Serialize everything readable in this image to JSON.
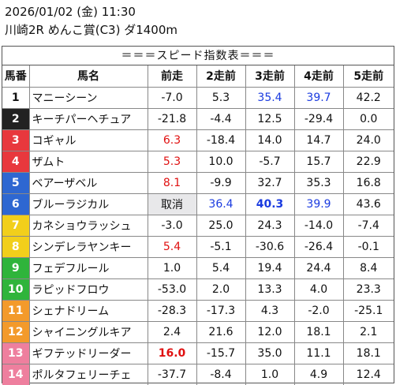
{
  "header": {
    "line1": "2026/01/02 (金) 11:30",
    "line2": "川崎2R めんこ賞(C3) ダ1400m"
  },
  "table": {
    "title": "＝＝＝スピード指数表＝＝＝",
    "columns": [
      "馬番",
      "馬名",
      "前走",
      "2走前",
      "3走前",
      "4走前",
      "5走前"
    ],
    "rows": [
      {
        "no": "1",
        "name": "マニーシーン",
        "vals": [
          "-7.0",
          "5.3",
          "35.4",
          "39.7",
          "42.2"
        ],
        "styles": [
          "",
          "",
          "blue",
          "blue",
          ""
        ]
      },
      {
        "no": "2",
        "name": "キーチパーヘチュア",
        "vals": [
          "-21.8",
          "-4.4",
          "12.5",
          "-29.4",
          "0.0"
        ],
        "styles": [
          "",
          "",
          "",
          "",
          ""
        ]
      },
      {
        "no": "3",
        "name": "コギャル",
        "vals": [
          "6.3",
          "-18.4",
          "14.0",
          "14.7",
          "24.0"
        ],
        "styles": [
          "red",
          "",
          "",
          "",
          ""
        ]
      },
      {
        "no": "4",
        "name": "ザムト",
        "vals": [
          "5.3",
          "10.0",
          "-5.7",
          "15.7",
          "22.9"
        ],
        "styles": [
          "red",
          "",
          "",
          "",
          ""
        ]
      },
      {
        "no": "5",
        "name": "ベアーザベル",
        "vals": [
          "8.1",
          "-9.9",
          "32.7",
          "35.3",
          "16.8"
        ],
        "styles": [
          "red",
          "",
          "",
          "",
          ""
        ]
      },
      {
        "no": "6",
        "name": "ブルーラジカル",
        "vals": [
          "取消",
          "36.4",
          "40.3",
          "39.9",
          "43.6"
        ],
        "styles": [
          "cancel",
          "blue",
          "blue bold",
          "blue",
          ""
        ]
      },
      {
        "no": "7",
        "name": "カネショウラッシュ",
        "vals": [
          "-3.0",
          "25.0",
          "24.3",
          "-14.0",
          "-7.4"
        ],
        "styles": [
          "",
          "",
          "",
          "",
          ""
        ]
      },
      {
        "no": "8",
        "name": "シンデレラヤンキー",
        "vals": [
          "5.4",
          "-5.1",
          "-30.6",
          "-26.4",
          "-0.1"
        ],
        "styles": [
          "red",
          "",
          "",
          "",
          ""
        ]
      },
      {
        "no": "9",
        "name": "フェデフルール",
        "vals": [
          "1.0",
          "5.4",
          "19.4",
          "24.4",
          "8.4"
        ],
        "styles": [
          "",
          "",
          "",
          "",
          ""
        ]
      },
      {
        "no": "10",
        "name": "ラピッドフロウ",
        "vals": [
          "-53.0",
          "2.0",
          "13.3",
          "4.0",
          "23.3"
        ],
        "styles": [
          "",
          "",
          "",
          "",
          ""
        ]
      },
      {
        "no": "11",
        "name": "シェナドリーム",
        "vals": [
          "-28.3",
          "-17.3",
          "4.3",
          "-2.0",
          "-25.1"
        ],
        "styles": [
          "",
          "",
          "",
          "",
          ""
        ]
      },
      {
        "no": "12",
        "name": "シャイニングルキア",
        "vals": [
          "2.4",
          "21.6",
          "12.0",
          "18.1",
          "2.1"
        ],
        "styles": [
          "",
          "",
          "",
          "",
          ""
        ]
      },
      {
        "no": "13",
        "name": "ギフテッドリーダー",
        "vals": [
          "16.0",
          "-15.7",
          "35.0",
          "11.1",
          "18.1"
        ],
        "styles": [
          "red bold",
          "",
          "",
          "",
          ""
        ]
      },
      {
        "no": "14",
        "name": "ポルタフェリーチェ",
        "vals": [
          "-37.7",
          "-8.4",
          "1.0",
          "4.9",
          "12.4"
        ],
        "styles": [
          "",
          "",
          "",
          "",
          ""
        ]
      }
    ],
    "frame_colors": {
      "1": {
        "bg": "#ffffff",
        "fg": "#111111"
      },
      "2": {
        "bg": "#222222",
        "fg": "#ffffff"
      },
      "3": {
        "bg": "#e8383d",
        "fg": "#ffffff"
      },
      "4": {
        "bg": "#e8383d",
        "fg": "#ffffff"
      },
      "5": {
        "bg": "#2e67d1",
        "fg": "#ffffff"
      },
      "6": {
        "bg": "#2e67d1",
        "fg": "#ffffff"
      },
      "7": {
        "bg": "#f2cf1b",
        "fg": "#ffffff"
      },
      "8": {
        "bg": "#f2cf1b",
        "fg": "#ffffff"
      },
      "9": {
        "bg": "#2fb43b",
        "fg": "#ffffff"
      },
      "10": {
        "bg": "#2fb43b",
        "fg": "#ffffff"
      },
      "11": {
        "bg": "#f39a2b",
        "fg": "#ffffff"
      },
      "12": {
        "bg": "#f39a2b",
        "fg": "#ffffff"
      },
      "13": {
        "bg": "#ee7f9e",
        "fg": "#ffffff"
      },
      "14": {
        "bg": "#ee7f9e",
        "fg": "#ffffff"
      }
    }
  }
}
